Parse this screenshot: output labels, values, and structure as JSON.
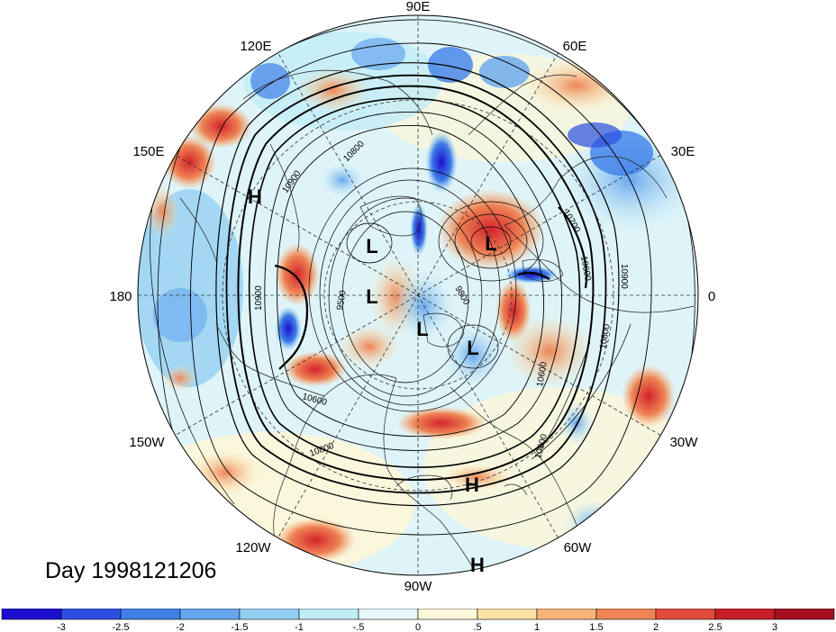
{
  "title": "Day 1998121206",
  "longitude_labels": [
    "90E",
    "60E",
    "30E",
    "0",
    "30W",
    "60W",
    "90W",
    "120W",
    "150W",
    "180",
    "150E",
    "120E"
  ],
  "pressure_centers": [
    {
      "label": "H"
    },
    {
      "label": "L"
    },
    {
      "label": "L"
    },
    {
      "label": "L"
    },
    {
      "label": "L"
    },
    {
      "label": "L"
    },
    {
      "label": "H"
    },
    {
      "label": "H"
    }
  ],
  "contour_labels": [
    "10900",
    "9500",
    "9800",
    "10600",
    "10800",
    "10900",
    "10800",
    "10600",
    "10900",
    "10700",
    "10600",
    "10800",
    "10900"
  ],
  "colorbar": {
    "tick_labels": [
      "-3",
      "-2.5",
      "-2",
      "-1.5",
      "-1",
      "-.5",
      "0",
      ".5",
      "1",
      "1.5",
      "2",
      "2.5",
      "3"
    ],
    "colors": [
      "#1b0fcf",
      "#2a4fe0",
      "#3f7fe8",
      "#67a6ee",
      "#94cff2",
      "#c2ecf6",
      "#e6f8fb",
      "#fdf7d9",
      "#fbe2a6",
      "#f6b577",
      "#ee8455",
      "#e04c3a",
      "#c71d27",
      "#a50f1f"
    ]
  }
}
